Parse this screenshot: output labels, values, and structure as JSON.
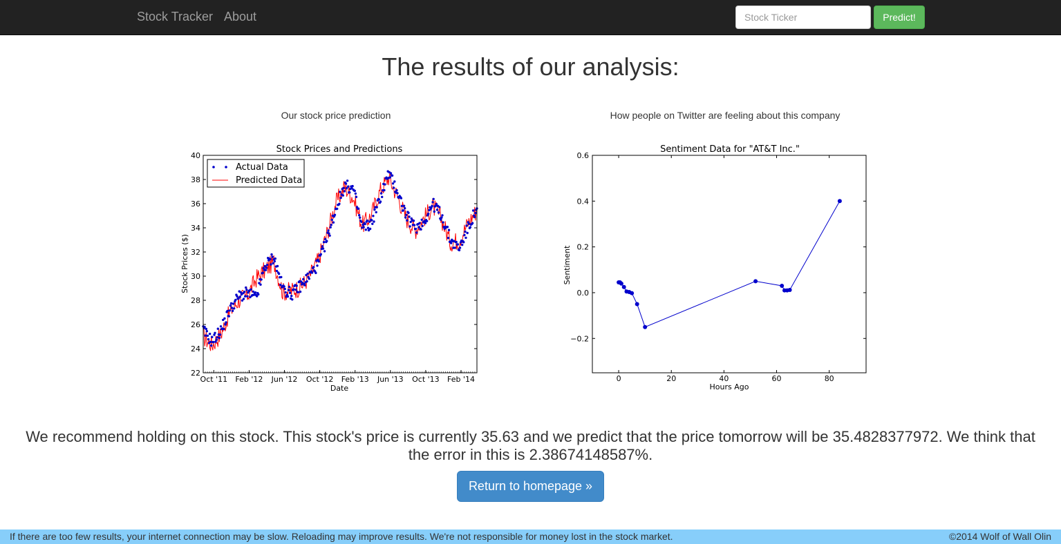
{
  "navbar": {
    "brand": "Stock Tracker",
    "about": "About",
    "search_placeholder": "Stock Ticker",
    "predict_label": "Predict!"
  },
  "main": {
    "title": "The results of our analysis:",
    "left_caption": "Our stock price prediction",
    "right_caption": "How people on Twitter are feeling about this company",
    "recommendation": "We recommend holding on this stock. This stock's price is currently 35.63 and we predict that the price tomorrow will be 35.4828377972. We think that the error in this is 2.38674148587%.",
    "home_button": "Return to homepage »"
  },
  "footer": {
    "disclaimer": "If there are too few results, your internet connection may be slow. Reloading may improve results. We're not responsible for money lost in the stock market.",
    "copyright": "©2014 Wolf of Wall Olin"
  },
  "colors": {
    "actual": "#0000cc",
    "predicted": "#ff0000",
    "sentiment": "#0000cc",
    "predict_button": "#5cb85c",
    "home_button": "#428bca",
    "footer": "#87cefa"
  },
  "chart_data": [
    {
      "type": "line",
      "title": "Stock Prices and Predictions",
      "xlabel": "Date",
      "ylabel": "Stock Prices ($)",
      "x_tick_labels": [
        "Oct '11",
        "Feb '12",
        "Jun '12",
        "Oct '12",
        "Feb '13",
        "Jun '13",
        "Oct '13",
        "Feb '14"
      ],
      "y_ticks": [
        22,
        24,
        26,
        28,
        30,
        32,
        34,
        36,
        38,
        40
      ],
      "ylim": [
        22,
        40
      ],
      "legend_position": "top-left",
      "x_months": [
        0,
        1,
        2,
        3,
        4,
        5,
        6,
        7,
        8,
        9,
        10,
        11,
        12,
        13,
        14,
        15,
        16,
        17,
        18,
        19,
        20,
        21,
        22,
        23,
        24,
        25,
        26,
        27,
        28,
        29,
        30,
        31
      ],
      "series": [
        {
          "name": "Actual Data",
          "style": "dots",
          "values": [
            25.5,
            24.6,
            25.5,
            27.2,
            28.3,
            28.6,
            28.2,
            30.8,
            31.6,
            29.0,
            28.5,
            29.2,
            30.0,
            31.0,
            33.0,
            35.5,
            37.5,
            37.2,
            34.0,
            34.3,
            36.4,
            38.5,
            37.0,
            35.0,
            34.0,
            34.5,
            36.0,
            35.0,
            33.0,
            32.3,
            34.0,
            35.6
          ]
        },
        {
          "name": "Predicted Data",
          "style": "line",
          "values": [
            25.0,
            24.3,
            25.2,
            27.0,
            28.0,
            28.4,
            29.8,
            30.5,
            31.2,
            28.7,
            28.8,
            29.1,
            29.9,
            31.3,
            33.5,
            36.0,
            37.4,
            36.5,
            34.2,
            35.0,
            37.0,
            38.2,
            36.6,
            34.8,
            33.8,
            34.8,
            35.8,
            34.7,
            32.8,
            33.0,
            34.4,
            35.5
          ]
        }
      ]
    },
    {
      "type": "line",
      "title": "Sentiment Data for \"AT&T Inc.\"",
      "xlabel": "Hours Ago",
      "ylabel": "Sentiment",
      "xlim": [
        -10,
        94
      ],
      "ylim": [
        -0.35,
        0.6
      ],
      "x_ticks": [
        0,
        20,
        40,
        60,
        80
      ],
      "y_ticks": [
        -0.2,
        0.0,
        0.2,
        0.4,
        0.6
      ],
      "x": [
        0,
        0.5,
        1,
        2,
        3,
        4,
        5,
        7,
        10,
        52,
        62,
        63,
        64,
        65,
        84
      ],
      "values": [
        0.045,
        0.045,
        0.04,
        0.025,
        0.005,
        0.003,
        -0.002,
        -0.05,
        -0.15,
        0.05,
        0.03,
        0.01,
        0.01,
        0.012,
        0.4
      ]
    }
  ]
}
